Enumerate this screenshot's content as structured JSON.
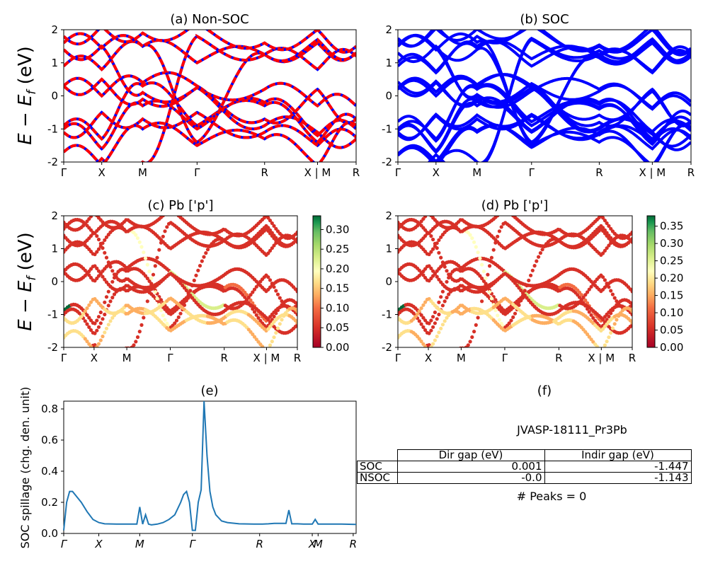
{
  "colors": {
    "nonsoc_up": "#0000ff",
    "nonsoc_dn": "#ff0000",
    "soc": "#0000ff",
    "spillage": "#1f77b4"
  },
  "kpath": {
    "ticks": [
      "Γ",
      "X",
      "M",
      "Γ",
      "R",
      "X | M",
      "R"
    ],
    "tick_positions": [
      0,
      0.13,
      0.27,
      0.456,
      0.687,
      0.868,
      1.0
    ]
  },
  "spillage_ticks": [
    "Γ",
    "X",
    "M",
    "Γ",
    "R",
    "X",
    "M",
    "R"
  ],
  "panels": {
    "a": {
      "title": "(a) Non-SOC"
    },
    "b": {
      "title": "(b) SOC"
    },
    "c": {
      "title": "(c)  Pb ['p']"
    },
    "d": {
      "title": "(d) Pb ['p']"
    },
    "e": {
      "title": "(e)"
    },
    "f": {
      "title": "(f)"
    }
  },
  "ylabel_band": "E − E",
  "ylabel_band_sub": "f",
  "ylabel_band_unit": " (eV)",
  "colorbar_c": {
    "ticks": [
      "0.00",
      "0.05",
      "0.10",
      "0.15",
      "0.20",
      "0.25",
      "0.30"
    ],
    "max": 0.335
  },
  "colorbar_d": {
    "ticks": [
      "0.00",
      "0.05",
      "0.10",
      "0.15",
      "0.20",
      "0.25",
      "0.30",
      "0.35"
    ],
    "max": 0.38
  },
  "info": {
    "material": "JVASP-18111_Pr3Pb",
    "table_headers": [
      "Dir gap (eV)",
      "Indir gap (eV)"
    ],
    "rows": [
      {
        "label": "SOC",
        "dir": "0.001",
        "indir": "-1.447"
      },
      {
        "label": "NSOC",
        "dir": "-0.0",
        "indir": "-1.143"
      }
    ],
    "peaks": "# Peaks = 0"
  },
  "chart_data": [
    {
      "type": "line",
      "title": "(a) Non-SOC",
      "ylabel": "E − E_f (eV)",
      "ylim": [
        -2,
        2
      ],
      "x_ticks": [
        "Γ",
        "X",
        "M",
        "Γ",
        "R",
        "X | M",
        "R"
      ],
      "series": [
        {
          "name": "band",
          "x": [
            0,
            0.13,
            0.27,
            0.456,
            0.687,
            0.868,
            1.0
          ],
          "y": [
            -0.9,
            -1.3,
            0.3,
            -0.9,
            -0.2,
            -1.4,
            -0.7
          ]
        },
        {
          "name": "band",
          "x": [
            0,
            0.13,
            0.27,
            0.456,
            0.687,
            0.868,
            1.0
          ],
          "y": [
            0.3,
            0.0,
            0.4,
            0.3,
            1.25,
            0.2,
            1.3
          ]
        },
        {
          "name": "band",
          "x": [
            0,
            0.13,
            0.27,
            0.456,
            0.687,
            0.868,
            1.0
          ],
          "y": [
            1.6,
            1.45,
            1.5,
            1.8,
            1.25,
            1.6,
            1.3
          ]
        }
      ]
    },
    {
      "type": "line",
      "title": "(b) SOC",
      "ylim": [
        -2,
        2
      ],
      "x_ticks": [
        "Γ",
        "X",
        "M",
        "Γ",
        "R",
        "X | M",
        "R"
      ],
      "series": [
        {
          "name": "band",
          "x": [
            0,
            0.13,
            0.27,
            0.456,
            0.687,
            0.868,
            1.0
          ],
          "y": [
            -0.85,
            -1.2,
            0.4,
            -0.95,
            -0.2,
            -1.5,
            -0.8
          ]
        },
        {
          "name": "band",
          "x": [
            0,
            0.13,
            0.27,
            0.456,
            0.687,
            0.868,
            1.0
          ],
          "y": [
            0.8,
            0.5,
            0.6,
            0.8,
            1.3,
            0.3,
            1.3
          ]
        }
      ]
    },
    {
      "type": "scatter",
      "title": "(c)  Pb ['p']",
      "ylim": [
        -2,
        2
      ],
      "colorbar_range": [
        0,
        0.335
      ]
    },
    {
      "type": "scatter",
      "title": "(d) Pb ['p']",
      "ylim": [
        -2,
        2
      ],
      "colorbar_range": [
        0,
        0.38
      ]
    },
    {
      "type": "line",
      "title": "(e)",
      "ylabel": "SOC spillage (chg. den. unit)",
      "ylim": [
        0,
        0.85
      ],
      "y_ticks": [
        0.0,
        0.2,
        0.4,
        0.6,
        0.8
      ],
      "x_ticks": [
        "Γ",
        "X",
        "M",
        "Γ",
        "R",
        "X",
        "M",
        "R"
      ],
      "series": [
        {
          "x": [
            0,
            0.01,
            0.02,
            0.03,
            0.06,
            0.08,
            0.1,
            0.12,
            0.14,
            0.18,
            0.22,
            0.24,
            0.25,
            0.26,
            0.27,
            0.28,
            0.29,
            0.3,
            0.32,
            0.34,
            0.36,
            0.38,
            0.4,
            0.41,
            0.42,
            0.43,
            0.44,
            0.45,
            0.46,
            0.47,
            0.48,
            0.49,
            0.5,
            0.51,
            0.52,
            0.54,
            0.56,
            0.6,
            0.65,
            0.68,
            0.7,
            0.72,
            0.74,
            0.76,
            0.77,
            0.78,
            0.8,
            0.82,
            0.84,
            0.85,
            0.86,
            0.87,
            0.9,
            0.95,
            1.0
          ],
          "y": [
            0.02,
            0.2,
            0.27,
            0.27,
            0.2,
            0.14,
            0.09,
            0.07,
            0.062,
            0.06,
            0.06,
            0.06,
            0.06,
            0.17,
            0.06,
            0.12,
            0.06,
            0.055,
            0.06,
            0.07,
            0.09,
            0.12,
            0.2,
            0.25,
            0.27,
            0.2,
            0.02,
            0.02,
            0.2,
            0.28,
            0.85,
            0.5,
            0.27,
            0.17,
            0.12,
            0.08,
            0.07,
            0.062,
            0.06,
            0.06,
            0.062,
            0.065,
            0.065,
            0.065,
            0.15,
            0.062,
            0.062,
            0.06,
            0.06,
            0.06,
            0.09,
            0.06,
            0.06,
            0.06,
            0.058
          ]
        }
      ]
    }
  ]
}
